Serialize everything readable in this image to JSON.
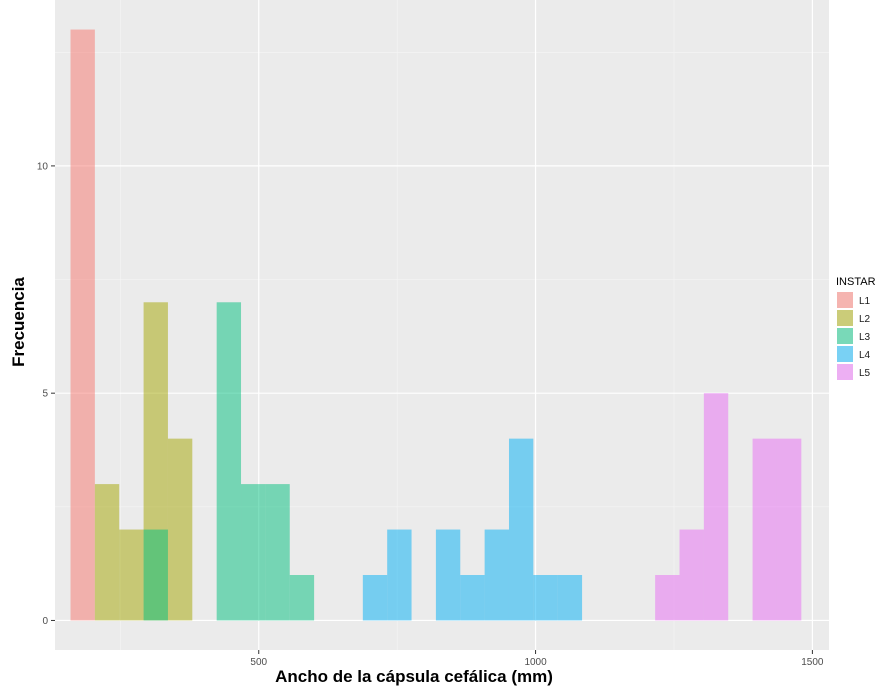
{
  "chart_data": {
    "type": "histogram",
    "title": "",
    "xlabel": "Ancho de la cápsula cefálica (mm)",
    "ylabel": "Frecuencia",
    "xlim": [
      132,
      1530
    ],
    "ylim": [
      -0.65,
      13.65
    ],
    "x_ticks": [
      500,
      1000,
      1500
    ],
    "y_ticks": [
      0,
      5,
      10
    ],
    "x_tick_labels": [
      "500",
      "1000",
      "1500"
    ],
    "y_tick_labels": [
      "0",
      "5",
      "10"
    ],
    "grid": true,
    "legend": {
      "title": "INSTAR",
      "position": "right"
    },
    "opacity": 0.5,
    "series": [
      {
        "name": "L1",
        "color": "#F8766D",
        "bins": [
          {
            "x0": 160,
            "x1": 204,
            "count": 13
          }
        ]
      },
      {
        "name": "L2",
        "color": "#A3A500",
        "bins": [
          {
            "x0": 204,
            "x1": 248,
            "count": 3
          },
          {
            "x0": 248,
            "x1": 292,
            "count": 2
          },
          {
            "x0": 292,
            "x1": 336,
            "count": 7
          },
          {
            "x0": 336,
            "x1": 380,
            "count": 4
          }
        ]
      },
      {
        "name": "L3",
        "color": "#00BF7D",
        "bins": [
          {
            "x0": 292,
            "x1": 336,
            "count": 2
          },
          {
            "x0": 424,
            "x1": 468,
            "count": 7
          },
          {
            "x0": 468,
            "x1": 512,
            "count": 3
          },
          {
            "x0": 512,
            "x1": 556,
            "count": 3
          },
          {
            "x0": 556,
            "x1": 600,
            "count": 1
          }
        ]
      },
      {
        "name": "L4",
        "color": "#00B0F6",
        "bins": [
          {
            "x0": 688,
            "x1": 732,
            "count": 1
          },
          {
            "x0": 732,
            "x1": 776,
            "count": 2
          },
          {
            "x0": 820,
            "x1": 864,
            "count": 2
          },
          {
            "x0": 864,
            "x1": 908,
            "count": 1
          },
          {
            "x0": 908,
            "x1": 952,
            "count": 2
          },
          {
            "x0": 952,
            "x1": 996,
            "count": 4
          },
          {
            "x0": 996,
            "x1": 1040,
            "count": 1
          },
          {
            "x0": 1040,
            "x1": 1084,
            "count": 1
          }
        ]
      },
      {
        "name": "L5",
        "color": "#E76BF3",
        "bins": [
          {
            "x0": 1216,
            "x1": 1260,
            "count": 1
          },
          {
            "x0": 1260,
            "x1": 1304,
            "count": 2
          },
          {
            "x0": 1304,
            "x1": 1348,
            "count": 5
          },
          {
            "x0": 1392,
            "x1": 1436,
            "count": 4
          },
          {
            "x0": 1436,
            "x1": 1480,
            "count": 4
          }
        ]
      }
    ]
  }
}
